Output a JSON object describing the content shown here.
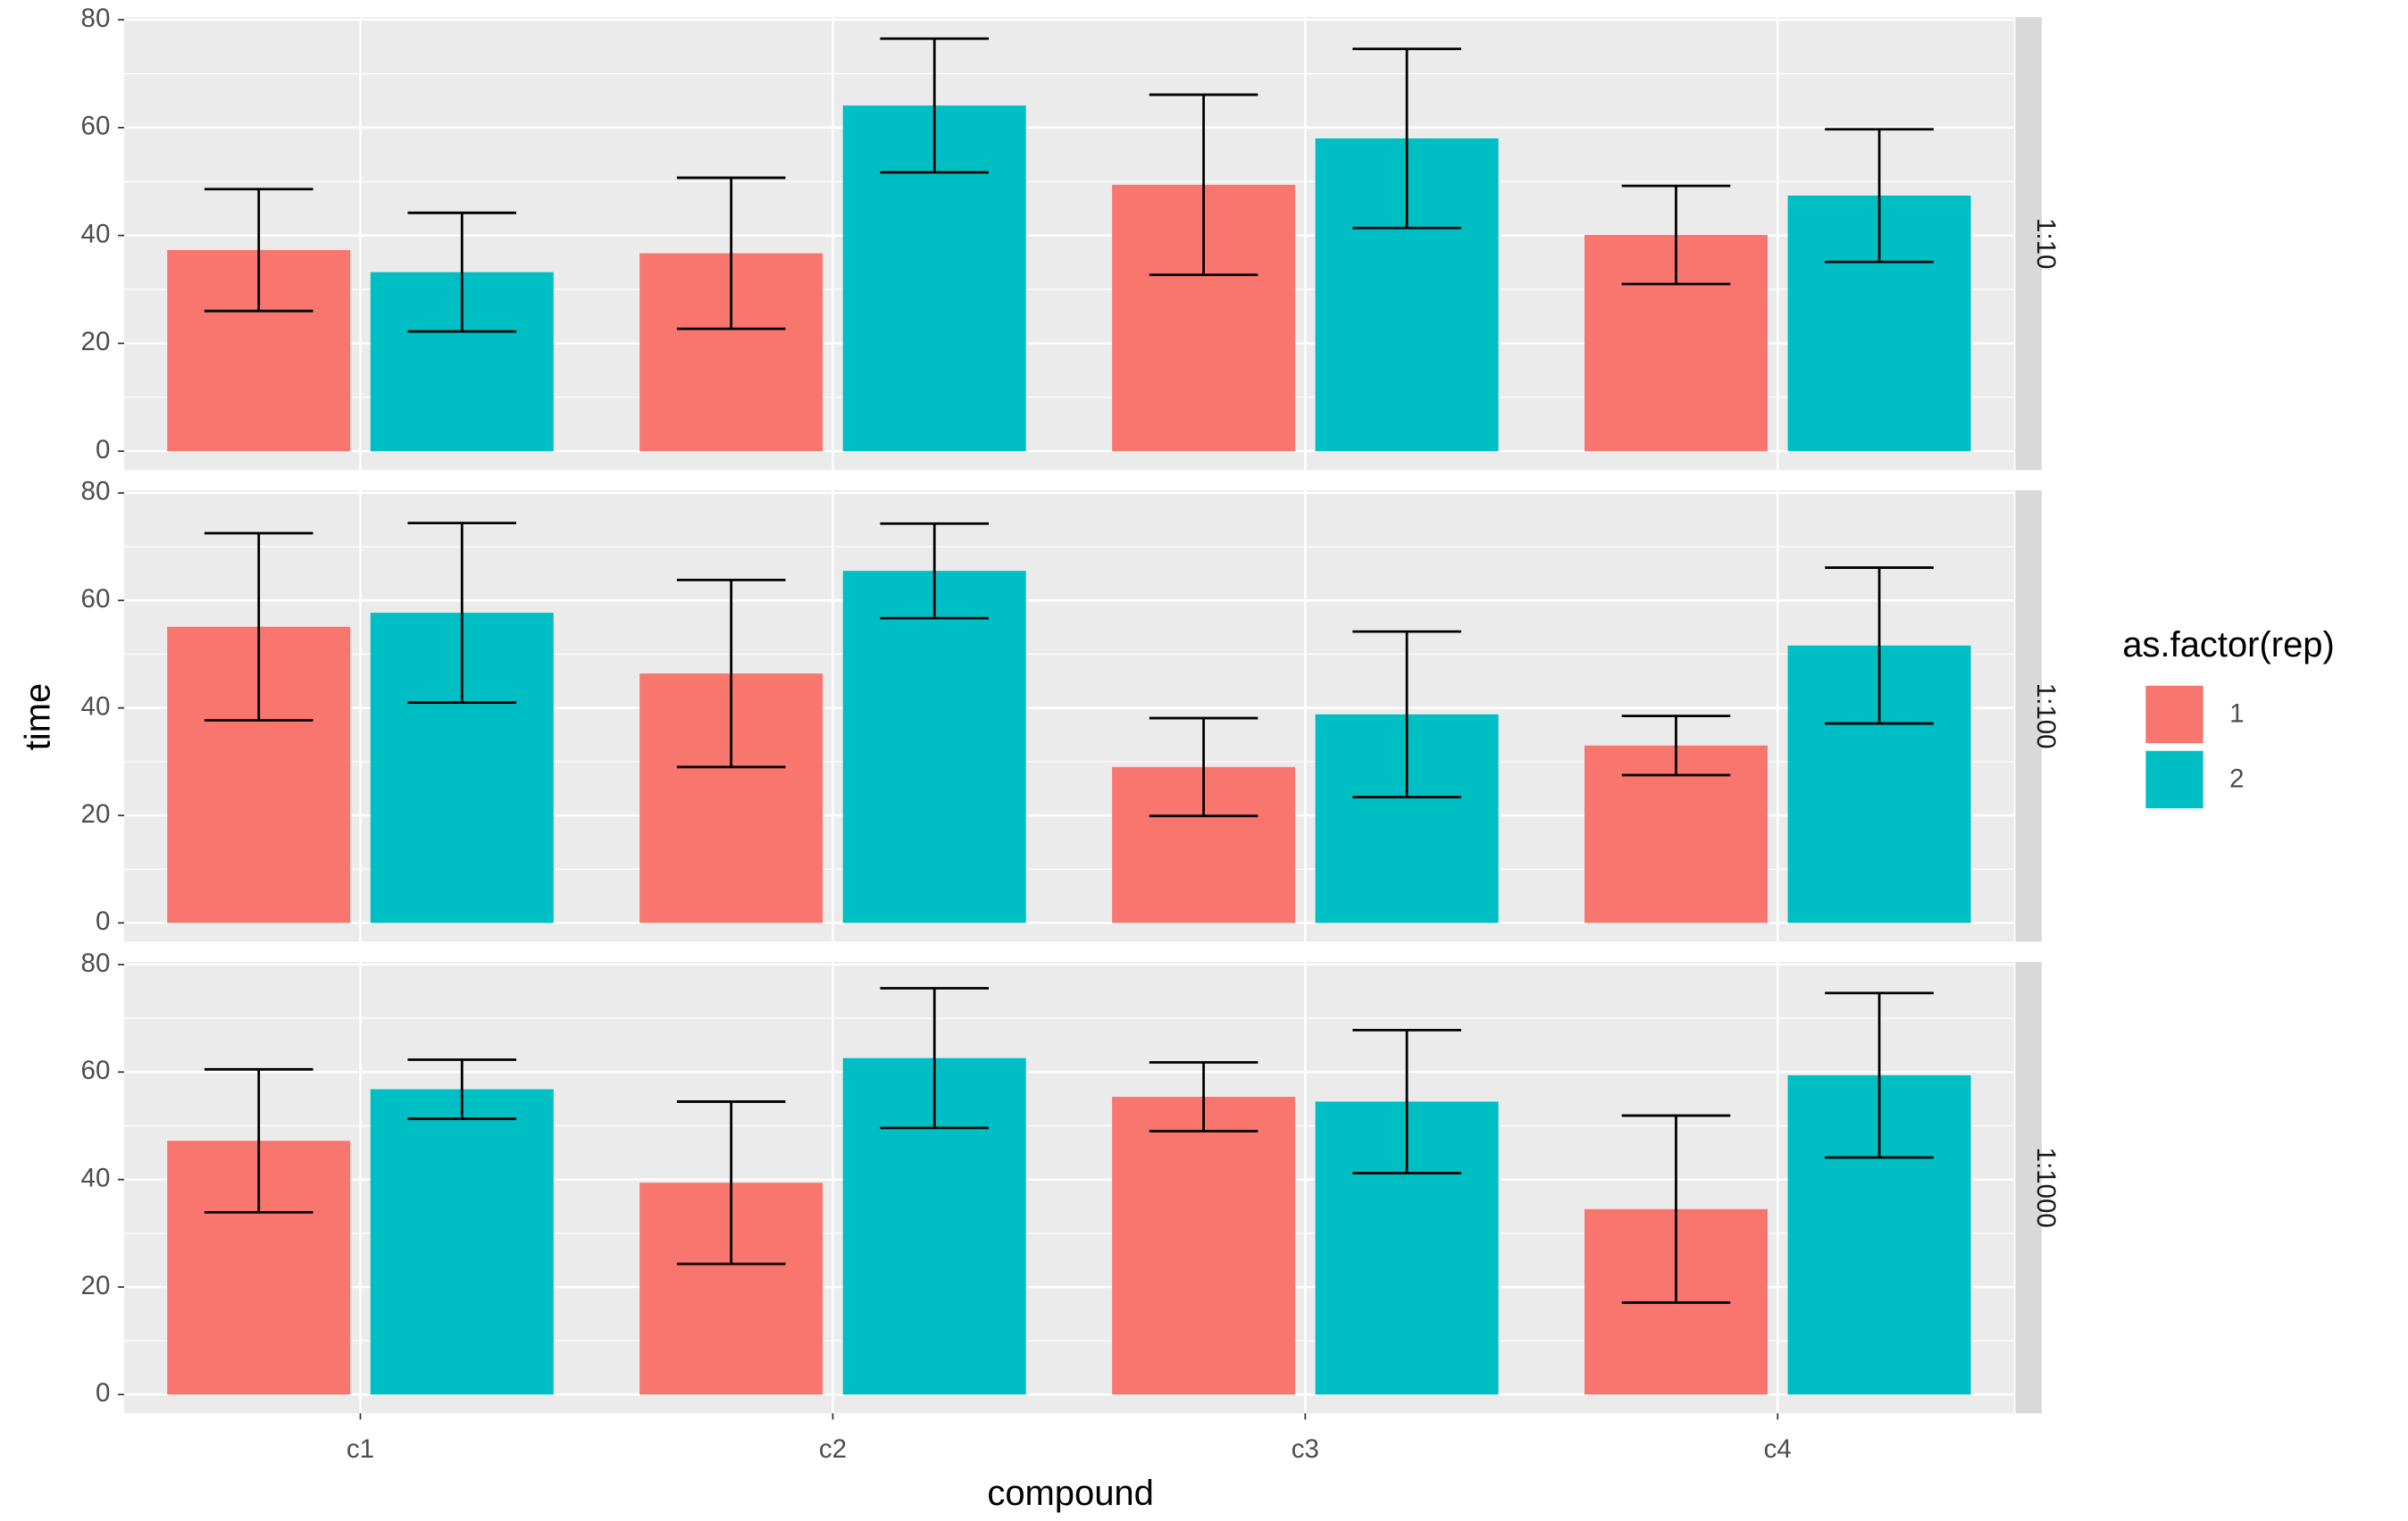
{
  "chart_data": {
    "type": "bar",
    "x_label": "compound",
    "y_label": "time",
    "legend_title": "as.factor(rep)",
    "categories": [
      "c1",
      "c2",
      "c3",
      "c4"
    ],
    "series": [
      {
        "name": "1",
        "color": "#F8766D"
      },
      {
        "name": "2",
        "color": "#00BFC4"
      }
    ],
    "ylim": [
      -3.5,
      80.5
    ],
    "yticks": [
      0,
      20,
      40,
      60,
      80
    ],
    "grid": true,
    "facets": [
      {
        "label": "1:10",
        "series": [
          {
            "values": [
              37.3,
              36.7,
              49.4,
              40.1
            ],
            "errors": [
              11.3,
              14,
              16.7,
              9.1
            ]
          },
          {
            "values": [
              33.2,
              64.1,
              58,
              47.4
            ],
            "errors": [
              11,
              12.4,
              16.6,
              12.3
            ]
          }
        ]
      },
      {
        "label": "1:100",
        "series": [
          {
            "values": [
              55.1,
              46.4,
              29,
              33
            ],
            "errors": [
              17.4,
              17.4,
              9.1,
              5.5
            ]
          },
          {
            "values": [
              57.7,
              65.5,
              38.8,
              51.6
            ],
            "errors": [
              16.7,
              8.8,
              15.4,
              14.5
            ]
          }
        ]
      },
      {
        "label": "1:1000",
        "series": [
          {
            "values": [
              47.2,
              39.4,
              55.4,
              34.5
            ],
            "errors": [
              13.3,
              15.1,
              6.4,
              17.4
            ]
          },
          {
            "values": [
              56.8,
              62.6,
              54.5,
              59.4
            ],
            "errors": [
              5.5,
              13,
              13.3,
              15.3
            ]
          }
        ]
      }
    ]
  }
}
